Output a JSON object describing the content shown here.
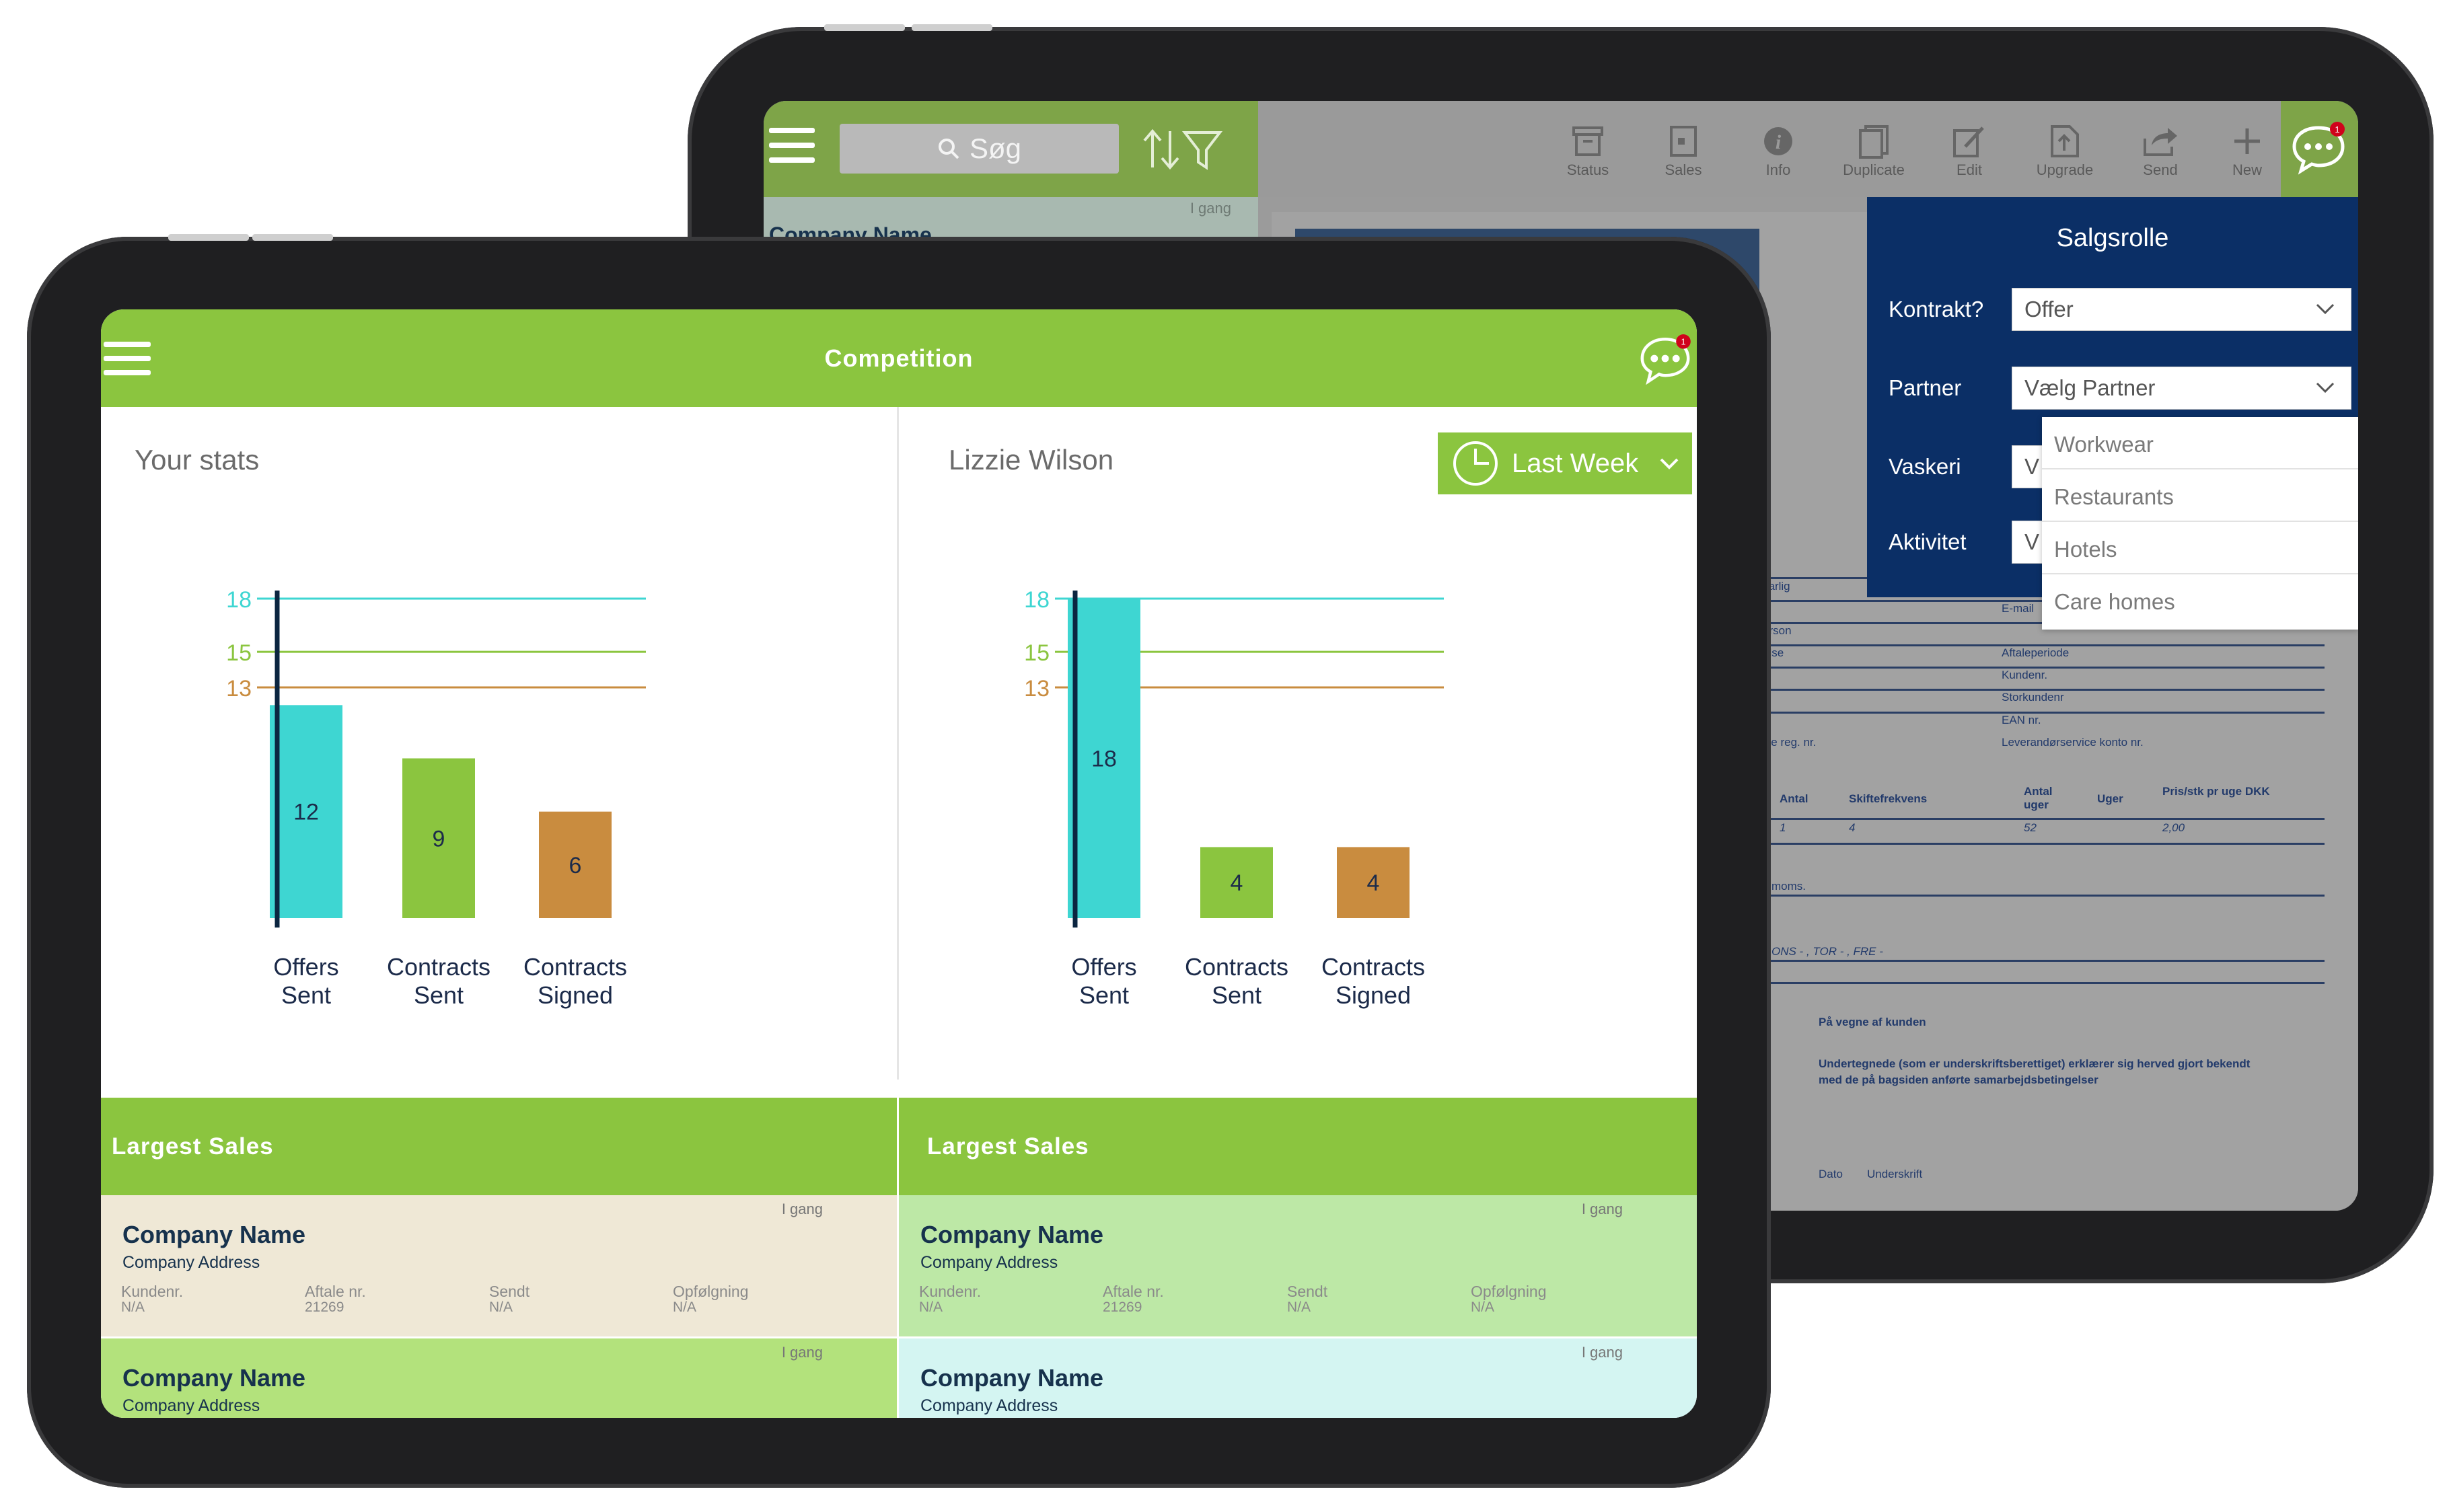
{
  "back_tablet": {
    "search_placeholder": "Søg",
    "toolbar": [
      {
        "label": "Status",
        "icon": "archive-icon"
      },
      {
        "label": "Sales",
        "icon": "document-icon"
      },
      {
        "label": "Info",
        "icon": "info-icon"
      },
      {
        "label": "Duplicate",
        "icon": "duplicate-icon"
      },
      {
        "label": "Edit",
        "icon": "edit-icon"
      },
      {
        "label": "Upgrade",
        "icon": "upgrade-icon"
      },
      {
        "label": "Send",
        "icon": "share-icon"
      },
      {
        "label": "New",
        "icon": "plus-icon"
      }
    ],
    "list": {
      "status": "I gang",
      "company": "Company Name"
    },
    "popover": {
      "title": "Salgsrolle",
      "fields": [
        {
          "label": "Kontrakt?",
          "value": "Offer"
        },
        {
          "label": "Partner",
          "value": "Vælg Partner"
        },
        {
          "label": "Vaskeri",
          "value": "V"
        },
        {
          "label": "Aktivitet",
          "value": "V"
        }
      ],
      "dropdown_options": [
        "Workwear",
        "Restaurants",
        "Hotels",
        "Care homes"
      ]
    },
    "form": {
      "left_labels": [
        "varlig",
        "erson",
        "else",
        "ice reg. nr."
      ],
      "right_labels": [
        "E-mail",
        "Aftaleperiode",
        "Kundenr.",
        "Storkundenr",
        "EAN nr.",
        "Leverandørservice konto nr."
      ],
      "table_headers": [
        "Antal",
        "Skiftefrekvens",
        "Antal uger",
        "Uger",
        "Pris/stk pr uge DKK"
      ],
      "table_row": [
        "1",
        "4",
        "52",
        "2,00"
      ],
      "moms": "moms.",
      "days": "ONS - , TOR - , FRE -",
      "behalf": "På vegne af kunden",
      "declaration_1": "Undertegnede (som er underskriftsberettiget) erklærer sig herved gjort bekendt",
      "declaration_2": "med de på bagsiden anførte samarbejdsbetingelser",
      "dato": "Dato",
      "underskrift": "Underskrift"
    },
    "notification_count": "1"
  },
  "front_tablet": {
    "title": "Competition",
    "notification_count": "1",
    "left_panel_title": "Your stats",
    "right_panel_title": "Lizzie Wilson",
    "period_label": "Last Week",
    "sales_header": "Largest Sales",
    "cards_left": [
      {
        "status": "I gang",
        "company": "Company Name",
        "address": "Company Address",
        "fields": [
          {
            "label": "Kundenr.",
            "value": "N/A"
          },
          {
            "label": "Aftale nr.",
            "value": "21269"
          },
          {
            "label": "Sendt",
            "value": "N/A"
          },
          {
            "label": "Opfølgning",
            "value": "N/A"
          }
        ]
      },
      {
        "status": "I gang",
        "company": "Company Name",
        "address": "Company Address"
      }
    ],
    "cards_right": [
      {
        "status": "I gang",
        "company": "Company Name",
        "address": "Company Address",
        "fields": [
          {
            "label": "Kundenr.",
            "value": "N/A"
          },
          {
            "label": "Aftale nr.",
            "value": "21269"
          },
          {
            "label": "Sendt",
            "value": "N/A"
          },
          {
            "label": "Opfølgning",
            "value": "N/A"
          }
        ]
      },
      {
        "status": "I gang",
        "company": "Company Name",
        "address": "Company Address"
      }
    ]
  },
  "colors": {
    "green": "#8bc53f",
    "teal": "#3ed6d2",
    "orange": "#c98c3f",
    "navy": "#0b2f66",
    "card_beige": "#efe8d6",
    "card_green": "#bde8a6",
    "card_lightgreen": "#b3e27c",
    "card_cyan": "#d4f5f2"
  },
  "chart_data": [
    {
      "type": "bar",
      "categories": [
        "Offers Sent",
        "Contracts Sent",
        "Contracts Signed"
      ],
      "values": [
        12,
        9,
        6
      ],
      "bar_colors": [
        "#3ed6d2",
        "#8bc53f",
        "#c98c3f"
      ],
      "reference_lines": [
        {
          "value": 18,
          "color": "#3ed6d2"
        },
        {
          "value": 15,
          "color": "#8bc53f"
        },
        {
          "value": 13,
          "color": "#c98c3f"
        }
      ],
      "ylim": [
        0,
        18
      ]
    },
    {
      "type": "bar",
      "categories": [
        "Offers Sent",
        "Contracts Sent",
        "Contracts Signed"
      ],
      "values": [
        18,
        4,
        4
      ],
      "bar_colors": [
        "#3ed6d2",
        "#8bc53f",
        "#c98c3f"
      ],
      "reference_lines": [
        {
          "value": 18,
          "color": "#3ed6d2"
        },
        {
          "value": 15,
          "color": "#8bc53f"
        },
        {
          "value": 13,
          "color": "#c98c3f"
        }
      ],
      "ylim": [
        0,
        18
      ]
    }
  ]
}
